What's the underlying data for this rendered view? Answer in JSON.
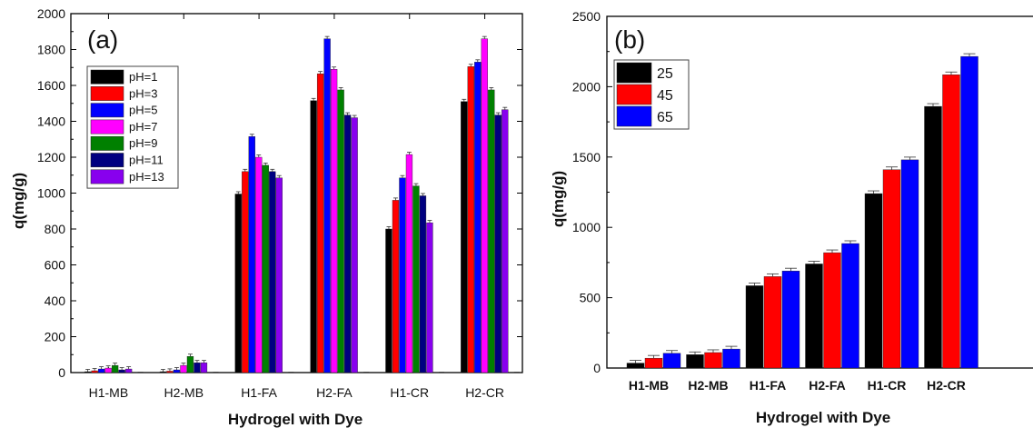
{
  "colors": {
    "pH=1": "#000000",
    "pH=3": "#ff0000",
    "pH=5": "#0000ff",
    "pH=7": "#ff00ff",
    "pH=9": "#008000",
    "pH=11": "#000080",
    "pH=13": "#8800ee",
    "25": "#000000",
    "45": "#ff0000",
    "65": "#0000ff"
  },
  "chart_data": [
    {
      "type": "bar",
      "panel_label": "(a)",
      "xlabel": "Hydrogel with Dye",
      "ylabel": "q(mg/g)",
      "ylim": [
        0,
        2000
      ],
      "yticks": [
        "0",
        "200",
        "400",
        "600",
        "800",
        "1000",
        "1200",
        "1400",
        "1600",
        "1800",
        "2000"
      ],
      "legend_position": "upper-left",
      "categories": [
        "H1-MB",
        "H2-MB",
        "H1-FA",
        "H2-FA",
        "H1-CR",
        "H2-CR"
      ],
      "series": [
        {
          "name": "pH=1",
          "values": [
            5,
            5,
            995,
            1515,
            800,
            1510
          ]
        },
        {
          "name": "pH=3",
          "values": [
            10,
            8,
            1120,
            1665,
            960,
            1705
          ]
        },
        {
          "name": "pH=5",
          "values": [
            20,
            15,
            1315,
            1860,
            1085,
            1730
          ]
        },
        {
          "name": "pH=7",
          "values": [
            25,
            40,
            1200,
            1690,
            1215,
            1860
          ]
        },
        {
          "name": "pH=9",
          "values": [
            40,
            90,
            1155,
            1575,
            1040,
            1575
          ]
        },
        {
          "name": "pH=11",
          "values": [
            15,
            55,
            1120,
            1435,
            985,
            1435
          ]
        },
        {
          "name": "pH=13",
          "values": [
            20,
            55,
            1085,
            1420,
            835,
            1465
          ]
        }
      ],
      "trailing_marks": [
        5,
        5,
        5,
        5,
        5,
        5
      ]
    },
    {
      "type": "bar",
      "panel_label": "(b)",
      "xlabel": "Hydrogel with Dye",
      "ylabel": "q(mg/g)",
      "ylim": [
        0,
        2500
      ],
      "yticks": [
        "0",
        "500",
        "1000",
        "1500",
        "2000",
        "2500"
      ],
      "legend_position": "upper-left",
      "categories": [
        "H1-MB",
        "H2-MB",
        "H1-FA",
        "H2-FA",
        "H1-CR",
        "H2-CR"
      ],
      "series": [
        {
          "name": "25",
          "values": [
            35,
            95,
            585,
            740,
            1240,
            1860
          ]
        },
        {
          "name": "45",
          "values": [
            70,
            110,
            650,
            820,
            1410,
            2085
          ]
        },
        {
          "name": "65",
          "values": [
            105,
            135,
            690,
            885,
            1480,
            2215
          ]
        }
      ]
    }
  ]
}
